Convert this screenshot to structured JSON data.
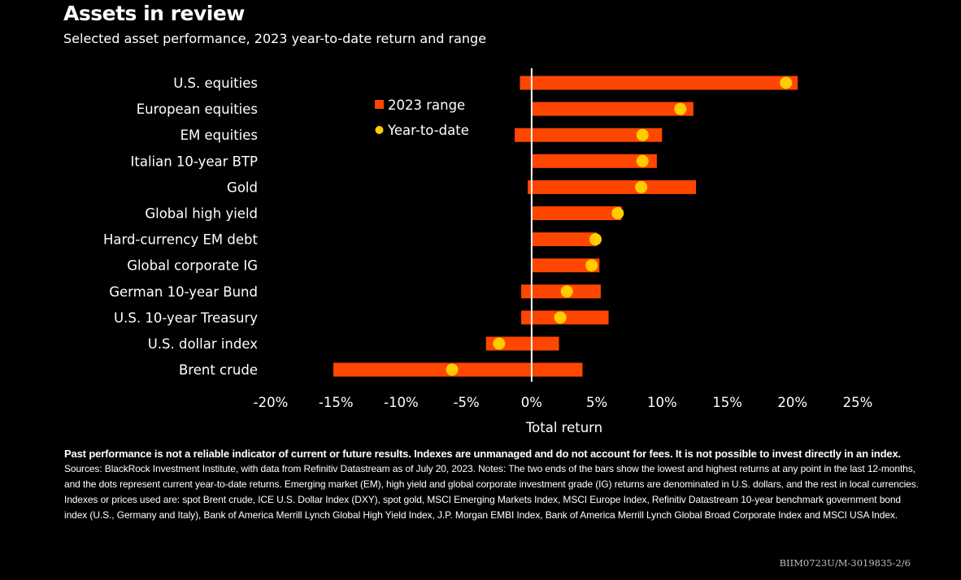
{
  "header": {
    "title": "Assets in review",
    "subtitle": "Selected asset performance, 2023 year-to-date return and range"
  },
  "chart_data": {
    "type": "range-bar-with-dots",
    "xlabel": "Total return",
    "xlim": [
      -20,
      25
    ],
    "xticks": [
      -20,
      -15,
      -10,
      -5,
      0,
      5,
      10,
      15,
      20,
      25
    ],
    "xtick_labels": [
      "-20%",
      "-15%",
      "-10%",
      "-5%",
      "0%",
      "5%",
      "10%",
      "15%",
      "20%",
      "25%"
    ],
    "legend": {
      "placement": "top-center",
      "range_label": "2023 range",
      "ytd_label": "Year-to-date"
    },
    "colors": {
      "range": "#ff4600",
      "ytd": "#ffcd00",
      "zero_line": "#ffffff"
    },
    "series": [
      {
        "name": "U.S. equities",
        "low": -0.9,
        "high": 20.4,
        "ytd": 19.5
      },
      {
        "name": "European equities",
        "low": 0.0,
        "high": 12.4,
        "ytd": 11.4
      },
      {
        "name": "EM equities",
        "low": -1.3,
        "high": 10.0,
        "ytd": 8.5
      },
      {
        "name": "Italian 10-year BTP",
        "low": 0.0,
        "high": 9.6,
        "ytd": 8.5
      },
      {
        "name": "Gold",
        "low": -0.3,
        "high": 12.6,
        "ytd": 8.4
      },
      {
        "name": "Global high yield",
        "low": 0.0,
        "high": 6.9,
        "ytd": 6.6
      },
      {
        "name": "Hard-currency EM debt",
        "low": 0.0,
        "high": 5.0,
        "ytd": 4.9
      },
      {
        "name": "Global corporate IG",
        "low": 0.0,
        "high": 5.2,
        "ytd": 4.6
      },
      {
        "name": "German 10-year Bund",
        "low": -0.8,
        "high": 5.3,
        "ytd": 2.7
      },
      {
        "name": "U.S. 10-year Treasury",
        "low": -0.8,
        "high": 5.9,
        "ytd": 2.2
      },
      {
        "name": "U.S. dollar index",
        "low": -3.5,
        "high": 2.1,
        "ytd": -2.5
      },
      {
        "name": "Brent crude",
        "low": -15.2,
        "high": 3.9,
        "ytd": -6.1
      }
    ]
  },
  "footer": {
    "disclaimer": "Past performance is not a reliable indicator of current or future results. Indexes are unmanaged and do not account for fees. It is not possible to invest directly in an index.",
    "notes": "Sources: BlackRock Investment Institute, with data from Refinitiv Datastream as of July 20, 2023. Notes: The two ends of the bars show the lowest and highest returns at any point in the last 12-months, and the dots represent current year-to-date returns. Emerging market (EM), high yield and global corporate investment grade (IG) returns are denominated in U.S. dollars, and the rest in local currencies. Indexes or prices used are: spot Brent crude, ICE U.S. Dollar Index (DXY), spot gold, MSCI Emerging Markets Index, MSCI Europe Index, Refinitiv Datastream 10-year benchmark government bond index (U.S., Germany and Italy), Bank of America Merrill Lynch Global High Yield Index, J.P. Morgan EMBI Index, Bank of America Merrill Lynch Global Broad Corporate Index and MSCI USA Index.",
    "code": "BIIM0723U/M-3019835-2/6"
  }
}
